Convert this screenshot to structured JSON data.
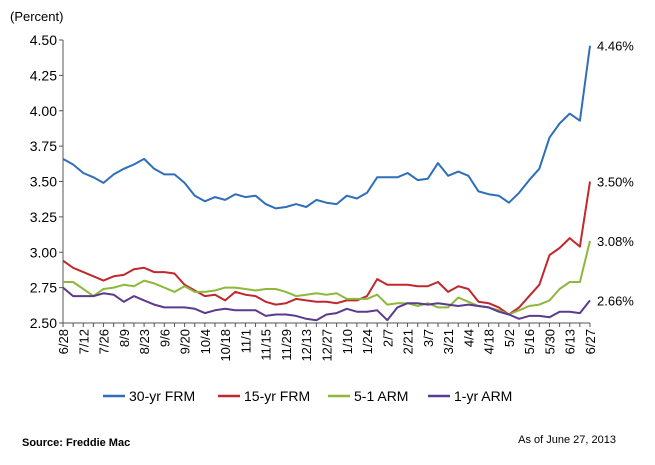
{
  "chart_data": {
    "type": "line",
    "title": "",
    "ylabel": "(Percent)",
    "xlabel": "",
    "ylim": [
      2.5,
      4.5
    ],
    "yticks": [
      2.5,
      2.75,
      3.0,
      3.25,
      3.5,
      3.75,
      4.0,
      4.25,
      4.5
    ],
    "ytick_labels": [
      "2.50",
      "2.75",
      "3.00",
      "3.25",
      "3.50",
      "3.75",
      "4.00",
      "4.25",
      "4.50"
    ],
    "grid": false,
    "legend_position": "bottom",
    "tick_labels": [
      "6/28",
      "7/12",
      "7/26",
      "8/9",
      "8/23",
      "9/6",
      "9/20",
      "10/4",
      "10/18",
      "11/1",
      "11/15",
      "11/29",
      "12/13",
      "12/27",
      "1/10",
      "1/24",
      "2/7",
      "2/21",
      "3/7",
      "3/21",
      "4/4",
      "4/18",
      "5/2",
      "5/16",
      "5/30",
      "6/13",
      "6/27"
    ],
    "x": [
      "6/28",
      "7/5",
      "7/12",
      "7/19",
      "7/26",
      "8/2",
      "8/9",
      "8/16",
      "8/23",
      "8/30",
      "9/6",
      "9/13",
      "9/20",
      "9/27",
      "10/4",
      "10/11",
      "10/18",
      "10/25",
      "11/1",
      "11/8",
      "11/15",
      "11/22",
      "11/29",
      "12/6",
      "12/13",
      "12/20",
      "12/27",
      "1/3",
      "1/10",
      "1/17",
      "1/24",
      "1/31",
      "2/7",
      "2/14",
      "2/21",
      "2/28",
      "3/7",
      "3/14",
      "3/21",
      "3/28",
      "4/4",
      "4/11",
      "4/18",
      "4/25",
      "5/2",
      "5/9",
      "5/16",
      "5/23",
      "5/30",
      "6/6",
      "6/13",
      "6/20",
      "6/27"
    ],
    "series": [
      {
        "name": "30-yr FRM",
        "color": "#2e6fb7",
        "end_label": "4.46%",
        "values": [
          3.66,
          3.62,
          3.56,
          3.53,
          3.49,
          3.55,
          3.59,
          3.62,
          3.66,
          3.59,
          3.55,
          3.55,
          3.49,
          3.4,
          3.36,
          3.39,
          3.37,
          3.41,
          3.39,
          3.4,
          3.34,
          3.31,
          3.32,
          3.34,
          3.32,
          3.37,
          3.35,
          3.34,
          3.4,
          3.38,
          3.42,
          3.53,
          3.53,
          3.53,
          3.56,
          3.51,
          3.52,
          3.63,
          3.54,
          3.57,
          3.54,
          3.43,
          3.41,
          3.4,
          3.35,
          3.42,
          3.51,
          3.59,
          3.81,
          3.91,
          3.98,
          3.93,
          4.46
        ]
      },
      {
        "name": "15-yr FRM",
        "color": "#c0282d",
        "end_label": "3.50%",
        "values": [
          2.94,
          2.89,
          2.86,
          2.83,
          2.8,
          2.83,
          2.84,
          2.88,
          2.89,
          2.86,
          2.86,
          2.85,
          2.77,
          2.73,
          2.69,
          2.7,
          2.66,
          2.72,
          2.7,
          2.69,
          2.65,
          2.63,
          2.64,
          2.67,
          2.66,
          2.65,
          2.65,
          2.64,
          2.66,
          2.66,
          2.69,
          2.81,
          2.77,
          2.77,
          2.77,
          2.76,
          2.76,
          2.79,
          2.72,
          2.76,
          2.74,
          2.65,
          2.64,
          2.61,
          2.56,
          2.61,
          2.69,
          2.77,
          2.98,
          3.03,
          3.1,
          3.04,
          3.5
        ]
      },
      {
        "name": "5-1 ARM",
        "color": "#8db83b",
        "end_label": "3.08%",
        "values": [
          2.79,
          2.79,
          2.74,
          2.69,
          2.74,
          2.75,
          2.77,
          2.76,
          2.8,
          2.78,
          2.75,
          2.72,
          2.76,
          2.72,
          2.72,
          2.73,
          2.75,
          2.75,
          2.74,
          2.73,
          2.74,
          2.74,
          2.72,
          2.69,
          2.7,
          2.71,
          2.7,
          2.71,
          2.67,
          2.67,
          2.67,
          2.7,
          2.63,
          2.64,
          2.64,
          2.62,
          2.64,
          2.61,
          2.61,
          2.68,
          2.65,
          2.62,
          2.61,
          2.59,
          2.56,
          2.59,
          2.62,
          2.63,
          2.66,
          2.74,
          2.79,
          2.79,
          3.08
        ]
      },
      {
        "name": "1-yr ARM",
        "color": "#5c3a8f",
        "end_label": "2.66%",
        "values": [
          2.75,
          2.69,
          2.69,
          2.69,
          2.71,
          2.7,
          2.65,
          2.69,
          2.66,
          2.63,
          2.61,
          2.61,
          2.61,
          2.6,
          2.57,
          2.59,
          2.6,
          2.59,
          2.59,
          2.59,
          2.55,
          2.56,
          2.56,
          2.55,
          2.53,
          2.52,
          2.56,
          2.57,
          2.6,
          2.58,
          2.58,
          2.59,
          2.52,
          2.61,
          2.64,
          2.64,
          2.63,
          2.64,
          2.63,
          2.62,
          2.63,
          2.62,
          2.61,
          2.58,
          2.56,
          2.53,
          2.55,
          2.55,
          2.54,
          2.58,
          2.58,
          2.57,
          2.66
        ]
      }
    ]
  },
  "footer": {
    "source": "Source: Freddie Mac",
    "date": "As of June 27, 2013"
  }
}
